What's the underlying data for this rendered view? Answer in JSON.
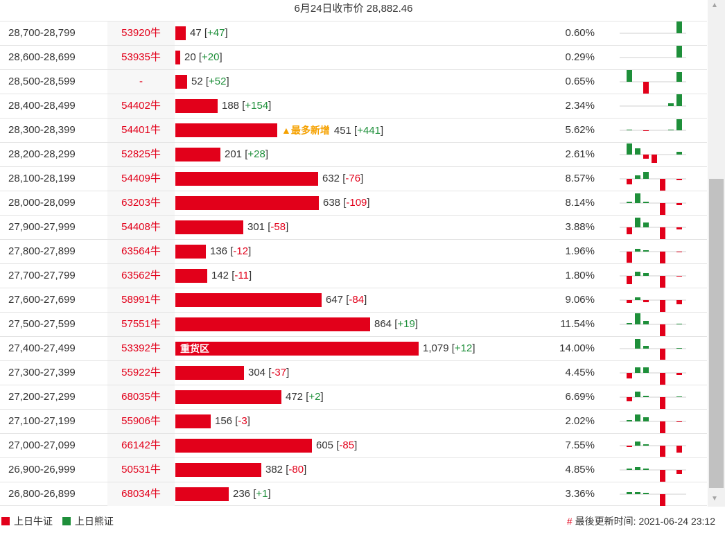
{
  "header": {
    "title": "6月24日收市价 28,882.46"
  },
  "colors": {
    "bull": "#e2001a",
    "bear": "#1e8f3a",
    "highlight": "#f5a100"
  },
  "rows": [
    {
      "range": "28,700-28,799",
      "code": "53920牛",
      "value": "47",
      "change": "+47",
      "pct": "0.60%",
      "bar_fraction": 0.043,
      "spark": [
        0,
        0,
        0,
        0,
        0,
        0,
        -18
      ]
    },
    {
      "range": "28,600-28,699",
      "code": "53935牛",
      "value": "20",
      "change": "+20",
      "pct": "0.29%",
      "bar_fraction": 0.019,
      "spark": [
        0,
        0,
        0,
        0,
        0,
        0,
        -18
      ]
    },
    {
      "range": "28,500-28,599",
      "code": "-",
      "value": "52",
      "change": "+52",
      "pct": "0.65%",
      "bar_fraction": 0.048,
      "spark": [
        -18,
        0,
        18,
        0,
        0,
        0,
        -14
      ]
    },
    {
      "range": "28,400-28,499",
      "code": "54402牛",
      "value": "188",
      "change": "+154",
      "pct": "2.34%",
      "bar_fraction": 0.174,
      "spark": [
        0,
        0,
        0,
        0,
        0,
        -4,
        -18
      ]
    },
    {
      "range": "28,300-28,399",
      "code": "54401牛",
      "value": "451",
      "change": "+441",
      "pct": "5.62%",
      "bar_fraction": 0.418,
      "tag": "▲最多新增",
      "spark": [
        -1,
        0,
        1,
        0,
        0,
        -1,
        -16
      ]
    },
    {
      "range": "28,200-28,299",
      "code": "52825牛",
      "value": "201",
      "change": "+28",
      "pct": "2.61%",
      "bar_fraction": 0.186,
      "spark": [
        -16,
        -9,
        6,
        12,
        0,
        0,
        -4
      ]
    },
    {
      "range": "28,100-28,199",
      "code": "54409牛",
      "value": "632",
      "change": "-76",
      "pct": "8.57%",
      "bar_fraction": 0.586,
      "spark": [
        8,
        -5,
        -10,
        0,
        18,
        0,
        2
      ]
    },
    {
      "range": "28,000-28,099",
      "code": "63203牛",
      "value": "638",
      "change": "-109",
      "pct": "8.14%",
      "bar_fraction": 0.591,
      "spark": [
        -2,
        -14,
        -2,
        0,
        18,
        0,
        3
      ]
    },
    {
      "range": "27,900-27,999",
      "code": "54408牛",
      "value": "301",
      "change": "-58",
      "pct": "3.88%",
      "bar_fraction": 0.279,
      "spark": [
        10,
        -14,
        -7,
        0,
        18,
        0,
        3
      ]
    },
    {
      "range": "27,800-27,899",
      "code": "63564牛",
      "value": "136",
      "change": "-12",
      "pct": "1.96%",
      "bar_fraction": 0.126,
      "spark": [
        16,
        -4,
        -2,
        0,
        18,
        0,
        1
      ]
    },
    {
      "range": "27,700-27,799",
      "code": "63562牛",
      "value": "142",
      "change": "-11",
      "pct": "1.80%",
      "bar_fraction": 0.132,
      "spark": [
        12,
        -6,
        -4,
        0,
        18,
        0,
        1
      ]
    },
    {
      "range": "27,600-27,699",
      "code": "58991牛",
      "value": "647",
      "change": "-84",
      "pct": "9.06%",
      "bar_fraction": 0.6,
      "spark": [
        4,
        -4,
        3,
        0,
        18,
        0,
        6
      ]
    },
    {
      "range": "27,500-27,599",
      "code": "57551牛",
      "value": "864",
      "change": "+19",
      "pct": "11.54%",
      "bar_fraction": 0.801,
      "spark": [
        -2,
        -16,
        -5,
        0,
        18,
        0,
        -1
      ]
    },
    {
      "range": "27,400-27,499",
      "code": "53392牛",
      "value": "1,079",
      "change": "+12",
      "pct": "14.00%",
      "bar_fraction": 1.0,
      "label": "重货区",
      "spark": [
        0,
        -14,
        -4,
        0,
        16,
        0,
        -1
      ]
    },
    {
      "range": "27,300-27,399",
      "code": "55922牛",
      "value": "304",
      "change": "-37",
      "pct": "4.45%",
      "bar_fraction": 0.282,
      "spark": [
        8,
        -8,
        -8,
        0,
        18,
        0,
        3
      ]
    },
    {
      "range": "27,200-27,299",
      "code": "68035牛",
      "value": "472",
      "change": "+2",
      "pct": "6.69%",
      "bar_fraction": 0.437,
      "spark": [
        6,
        -8,
        -2,
        0,
        18,
        0,
        -1
      ]
    },
    {
      "range": "27,100-27,199",
      "code": "55906牛",
      "value": "156",
      "change": "-3",
      "pct": "2.02%",
      "bar_fraction": 0.145,
      "spark": [
        -2,
        -10,
        -6,
        0,
        18,
        0,
        1
      ]
    },
    {
      "range": "27,000-27,099",
      "code": "66142牛",
      "value": "605",
      "change": "-85",
      "pct": "7.55%",
      "bar_fraction": 0.561,
      "spark": [
        2,
        -6,
        -2,
        0,
        16,
        0,
        10
      ]
    },
    {
      "range": "26,900-26,999",
      "code": "50531牛",
      "value": "382",
      "change": "-80",
      "pct": "4.85%",
      "bar_fraction": 0.354,
      "spark": [
        -2,
        -4,
        -2,
        0,
        18,
        0,
        6
      ]
    },
    {
      "range": "26,800-26,899",
      "code": "68034牛",
      "value": "236",
      "change": "+1",
      "pct": "3.36%",
      "bar_fraction": 0.219,
      "spark": [
        -3,
        -3,
        -2,
        0,
        18,
        0,
        0
      ]
    }
  ],
  "legend": {
    "bull_label": "上日牛证",
    "bear_label": "上日熊证"
  },
  "footer": {
    "hash": "#",
    "updated_label": "最後更新时间: 2021-06-24 23:12"
  },
  "icons": {
    "scroll_up": "▲",
    "scroll_down": "▼"
  }
}
